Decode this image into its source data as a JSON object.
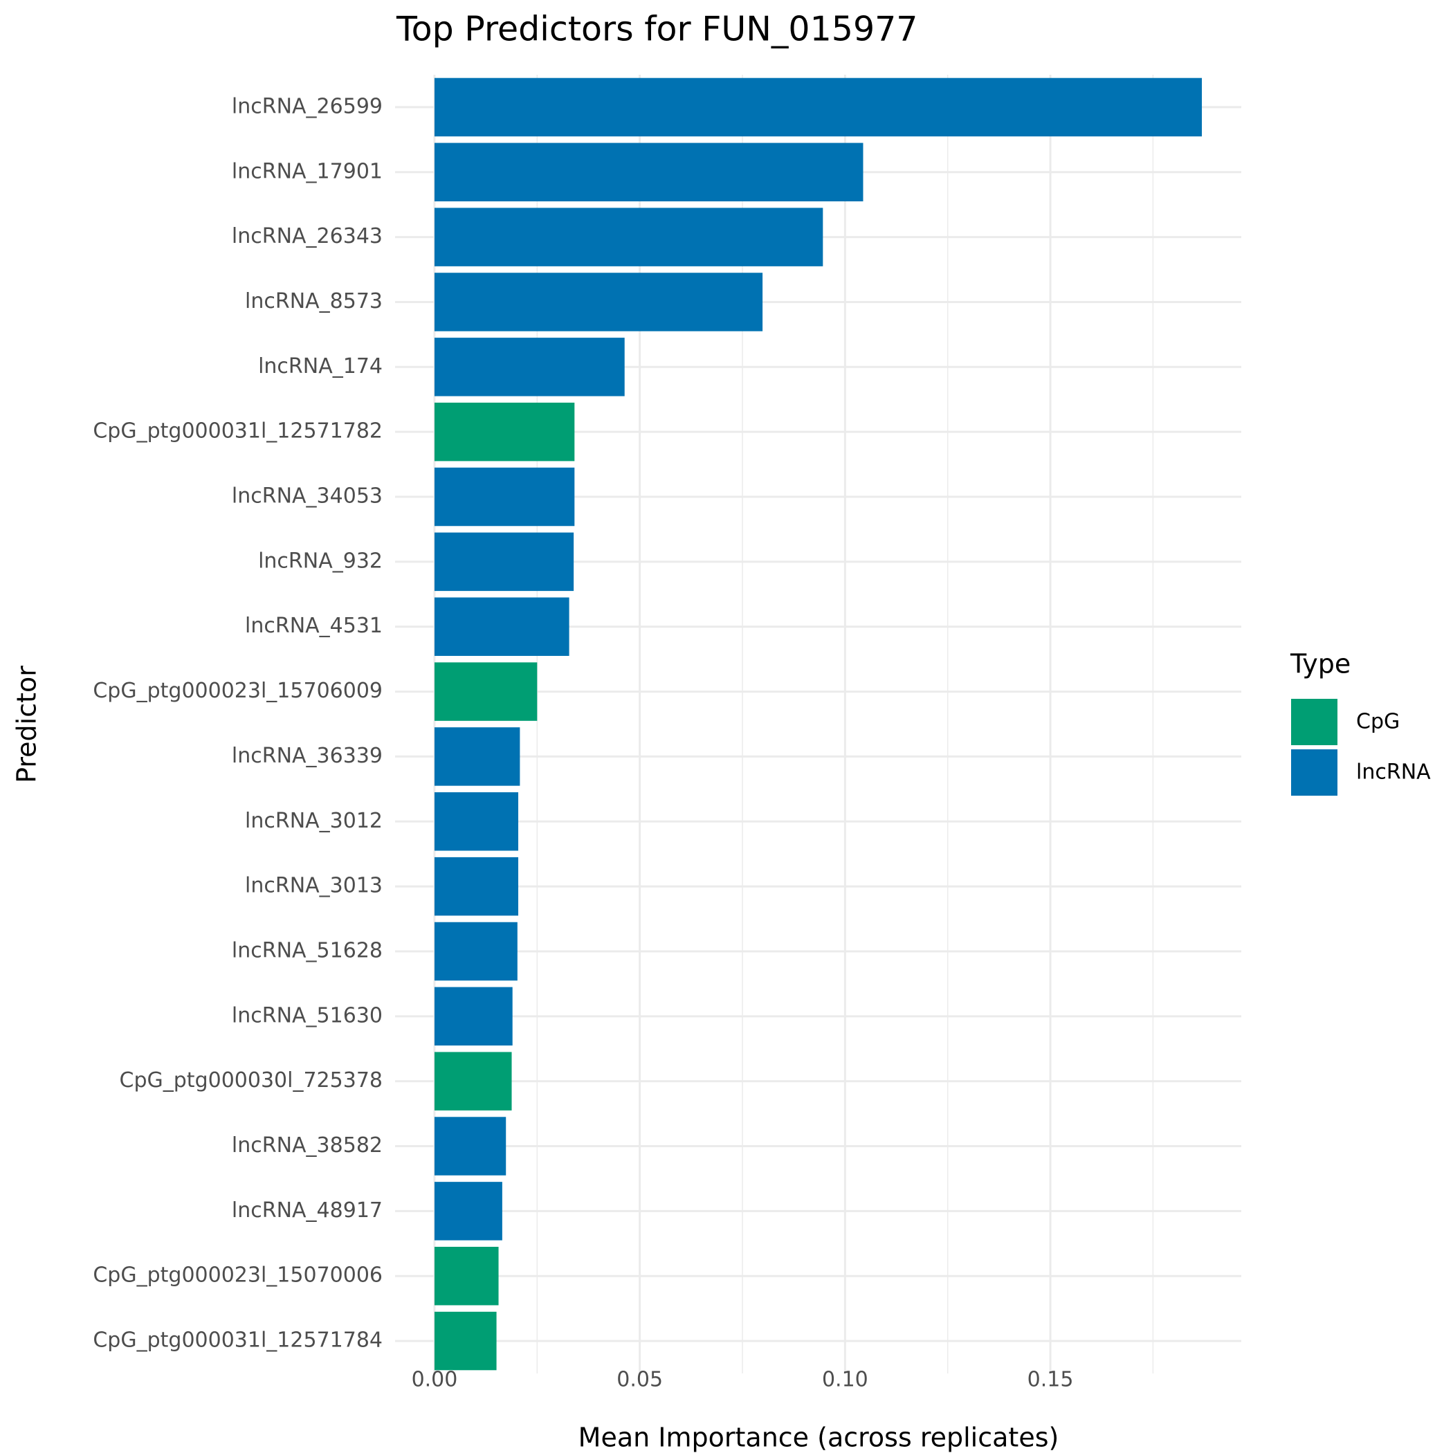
{
  "chart_data": {
    "type": "bar",
    "orientation": "horizontal",
    "title": "Top Predictors for FUN_015977",
    "x_label": "Mean Importance (across replicates)",
    "y_label": "Predictor",
    "legend_title": "Type",
    "legend_position": "right",
    "grid": true,
    "categories": [
      "lncRNA_26599",
      "lncRNA_17901",
      "lncRNA_26343",
      "lncRNA_8573",
      "lncRNA_174",
      "CpG_ptg000031l_12571782",
      "lncRNA_34053",
      "lncRNA_932",
      "lncRNA_4531",
      "CpG_ptg000023l_15706009",
      "lncRNA_36339",
      "lncRNA_3012",
      "lncRNA_3013",
      "lncRNA_51628",
      "lncRNA_51630",
      "CpG_ptg000030l_725378",
      "lncRNA_38582",
      "lncRNA_48917",
      "CpG_ptg000023l_15070006",
      "CpG_ptg000031l_12571784"
    ],
    "series": [
      {
        "name": "CpG",
        "color": "#009E73",
        "values": [
          null,
          null,
          null,
          null,
          null,
          0.0341,
          null,
          null,
          null,
          0.025,
          null,
          null,
          null,
          null,
          null,
          0.0188,
          null,
          null,
          0.0156,
          0.0151
        ]
      },
      {
        "name": "lncRNA",
        "color": "#0072B2",
        "values": [
          0.1869,
          0.1044,
          0.0946,
          0.0799,
          0.0463,
          null,
          0.0341,
          0.0339,
          0.0328,
          null,
          0.0208,
          0.0204,
          0.0204,
          0.0202,
          0.019,
          null,
          0.0174,
          0.0165,
          null,
          null
        ]
      }
    ],
    "xlim": [
      -0.0096,
      0.1965
    ],
    "xticks": [
      {
        "value": 0,
        "label": "0.00"
      },
      0.05,
      {
        "value": 0.1,
        "label": "0.10"
      },
      0.15
    ],
    "x_minor_ticks": [
      0.025,
      0.075,
      0.125,
      0.175
    ]
  }
}
